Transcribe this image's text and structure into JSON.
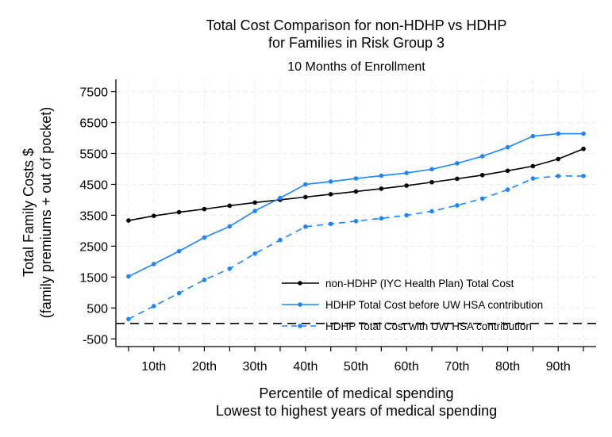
{
  "chart_data": {
    "type": "line",
    "title_lines": [
      "Total Cost Comparison for non-HDHP vs HDHP",
      "for Families in Risk Group 3"
    ],
    "subtitle": "10 Months of Enrollment",
    "ylabel_lines": [
      "Total Family Costs $",
      "(family premiums + out of pocket)"
    ],
    "xlabel_lines": [
      "Percentile of medical spending",
      "Lowest to highest years of medical spending"
    ],
    "x": [
      5,
      10,
      15,
      20,
      25,
      30,
      35,
      40,
      45,
      50,
      55,
      60,
      65,
      70,
      75,
      80,
      85,
      90,
      95
    ],
    "xlim": [
      2.5,
      97.5
    ],
    "x_ticks": [
      10,
      20,
      30,
      40,
      50,
      60,
      70,
      80,
      90
    ],
    "x_minor_ticks": [
      5,
      15,
      25,
      35,
      45,
      55,
      65,
      75,
      85,
      95
    ],
    "x_tick_labels": [
      "10th",
      "20th",
      "30th",
      "40th",
      "50th",
      "60th",
      "70th",
      "80th",
      "90th"
    ],
    "ylim": [
      -750,
      7900
    ],
    "y_ticks": [
      -500,
      500,
      1500,
      2500,
      3500,
      4500,
      5500,
      6500,
      7500
    ],
    "y_tick_labels": [
      "-500",
      "500",
      "1500",
      "2500",
      "3500",
      "4500",
      "5500",
      "6500",
      "7500"
    ],
    "grid": true,
    "reference_line": {
      "y": 0,
      "style": "dashed"
    },
    "legend_position": "bottom-right",
    "series": [
      {
        "name": "non-HDHP (IYC Health Plan) Total Cost",
        "color": "#000000",
        "dashed": false,
        "values": [
          3330,
          3480,
          3600,
          3700,
          3810,
          3910,
          4000,
          4090,
          4180,
          4270,
          4360,
          4460,
          4570,
          4680,
          4800,
          4940,
          5090,
          5320,
          5650
        ]
      },
      {
        "name": "HDHP Total Cost before UW HSA contribution",
        "color": "#1a85ff",
        "dashed": false,
        "values": [
          1520,
          1920,
          2340,
          2780,
          3140,
          3640,
          4060,
          4500,
          4590,
          4690,
          4780,
          4870,
          4990,
          5180,
          5410,
          5700,
          6060,
          6140,
          6140
        ]
      },
      {
        "name": "HDHP Total Cost with UW HSA contribution",
        "color": "#1a85ff",
        "dashed": true,
        "values": [
          140,
          560,
          980,
          1410,
          1770,
          2260,
          2700,
          3130,
          3220,
          3310,
          3400,
          3500,
          3630,
          3820,
          4040,
          4330,
          4690,
          4770,
          4770
        ]
      }
    ]
  }
}
